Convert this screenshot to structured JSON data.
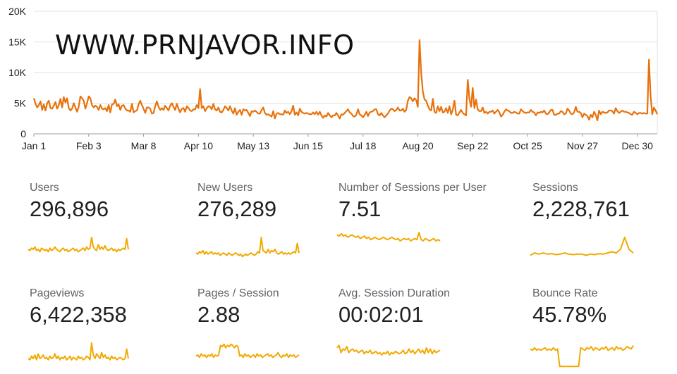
{
  "watermark": "WWW.PRNJAVOR.INFO",
  "colors": {
    "main_line": "#e8710a",
    "sparkline": "#f2a900",
    "grid": "#e0e0e0",
    "axis_text": "#212121"
  },
  "chart_data": {
    "type": "line",
    "series": [
      {
        "values": [
          5800,
          4900,
          4300,
          4700,
          5300,
          3900,
          4800,
          3800,
          5000,
          5400,
          4200,
          4100,
          4600,
          5200,
          4100,
          4700,
          5700,
          4300,
          6000,
          5100,
          5800,
          4200,
          3800,
          4100,
          5000,
          4300,
          3600,
          4400,
          6100,
          5800,
          5400,
          4100,
          5000,
          6100,
          5800,
          4700,
          4300,
          4600,
          4400,
          3900,
          4700,
          4100,
          4000,
          4200,
          3700,
          4700,
          3500,
          4800,
          4900,
          5600,
          4500,
          4800,
          3900,
          4600,
          4700,
          4100,
          3800,
          3800,
          3600,
          4900,
          3500,
          3700,
          3800,
          4800,
          5400,
          4700,
          4100,
          3400,
          4300,
          4300,
          4100,
          3300,
          3400,
          4500,
          5300,
          4400,
          3900,
          4200,
          3900,
          4600,
          4200,
          3800,
          4600,
          5000,
          4400,
          3900,
          4900,
          4100,
          3500,
          4100,
          4200,
          3600,
          4500,
          4200,
          3800,
          3700,
          4000,
          4000,
          4700,
          4200,
          7300,
          4200,
          4500,
          3700,
          4200,
          4500,
          4400,
          4000,
          4900,
          4000,
          3800,
          4300,
          3600,
          3500,
          3900,
          4500,
          4200,
          3800,
          4500,
          3800,
          3300,
          4200,
          3100,
          3600,
          3900,
          3100,
          4000,
          3800,
          3900,
          3400,
          2900,
          3700,
          3600,
          3800,
          3600,
          3300,
          3300,
          3900,
          4300,
          3400,
          3100,
          3200,
          3000,
          2800,
          3700,
          2500,
          3300,
          3400,
          3200,
          3200,
          3100,
          3800,
          3400,
          3600,
          3200,
          3700,
          4600,
          3100,
          3500,
          3000,
          4100,
          3600,
          3400,
          3300,
          3400,
          3300,
          3200,
          3200,
          3500,
          3200,
          3600,
          3100,
          3600,
          3000,
          2600,
          3000,
          2800,
          3400,
          3000,
          2700,
          3000,
          3000,
          3400,
          3000,
          2500,
          3200,
          3100,
          3400,
          3700,
          4000,
          3500,
          3300,
          2900,
          2800,
          3100,
          4000,
          3200,
          3000,
          2700,
          3100,
          3600,
          2900,
          3500,
          3600,
          3700,
          4000,
          4000,
          3200,
          3000,
          3400,
          3000,
          2700,
          3000,
          3300,
          3800,
          4100,
          4000,
          3700,
          3900,
          4300,
          3800,
          3800,
          4100,
          3600,
          3900,
          5400,
          6000,
          5800,
          5300,
          5800,
          5500,
          4400,
          15300,
          9900,
          6900,
          5600,
          5400,
          4600,
          4000,
          3800,
          5700,
          3600,
          3400,
          4500,
          3700,
          4400,
          3500,
          3600,
          4200,
          3400,
          4500,
          3200,
          3900,
          5400,
          3100,
          3000,
          3500,
          3900,
          3400,
          3200,
          3000,
          8800,
          5700,
          4400,
          7500,
          4200,
          5600,
          4000,
          3700,
          3700,
          4300,
          3400,
          3600,
          3300,
          3600,
          3600,
          3800,
          3300,
          3600,
          3900,
          3500,
          2800,
          3100,
          3600,
          4000,
          3800,
          3700,
          3400,
          3400,
          3600,
          3500,
          3300,
          3300,
          4000,
          3700,
          3500,
          3400,
          3500,
          3500,
          3900,
          3600,
          3500,
          3000,
          3500,
          3400,
          3600,
          3500,
          3800,
          3300,
          3200,
          3500,
          3900,
          3900,
          3100,
          3100,
          3300,
          3300,
          3700,
          3600,
          3200,
          3300,
          4100,
          3800,
          3300,
          3200,
          3500,
          4400,
          3600,
          3600,
          3400,
          2700,
          3300,
          3100,
          2900,
          2300,
          3100,
          2700,
          3600,
          3100,
          2200,
          3800,
          3200,
          3600,
          3500,
          3400,
          3500,
          3800,
          3800,
          3700,
          3300,
          4200,
          3700,
          3400,
          3600,
          3800,
          3600,
          3600,
          3500,
          3400,
          3200,
          3100,
          3600,
          3400,
          3200,
          3400,
          3400,
          3300,
          3400,
          3300,
          3300,
          12100,
          6100,
          3200,
          4300,
          3800,
          3200
        ]
      }
    ],
    "yticks": [
      0,
      5000,
      10000,
      15000,
      20000
    ],
    "ytick_labels": [
      "0",
      "5K",
      "10K",
      "15K",
      "20K"
    ],
    "xtick_labels": [
      "Jan 1",
      "Feb 3",
      "Mar 8",
      "Apr 10",
      "May 13",
      "Jun 15",
      "Jul 18",
      "Aug 20",
      "Sep 22",
      "Oct 25",
      "Nov 27",
      "Dec 30"
    ],
    "xtick_days": [
      0,
      33,
      66,
      99,
      132,
      165,
      198,
      231,
      264,
      297,
      330,
      363
    ],
    "ylim": [
      0,
      20000
    ],
    "grid": true
  },
  "metrics": [
    {
      "label": "Users",
      "value": "296,896",
      "spark": [
        0.5,
        0.45,
        0.55,
        0.5,
        0.6,
        0.45,
        0.5,
        0.4,
        0.55,
        0.5,
        0.45,
        0.5,
        0.4,
        0.55,
        0.45,
        0.5,
        0.6,
        0.5,
        0.45,
        0.4,
        0.5,
        0.55,
        0.45,
        0.5,
        0.4,
        0.45,
        0.5,
        0.55,
        0.45,
        0.5,
        0.4,
        0.45,
        0.5,
        0.55,
        0.45,
        0.6,
        0.5,
        0.55,
        1.0,
        0.6,
        0.5,
        0.45,
        0.7,
        0.5,
        0.6,
        0.5,
        0.65,
        0.5,
        0.45,
        0.5,
        0.55,
        0.45,
        0.5,
        0.4,
        0.5,
        0.45,
        0.5,
        0.55,
        0.5,
        0.95,
        0.5
      ]
    },
    {
      "label": "New Users",
      "value": "276,289",
      "spark": [
        0.35,
        0.3,
        0.4,
        0.35,
        0.45,
        0.3,
        0.4,
        0.3,
        0.35,
        0.4,
        0.3,
        0.35,
        0.3,
        0.35,
        0.25,
        0.3,
        0.35,
        0.3,
        0.25,
        0.35,
        0.3,
        0.25,
        0.3,
        0.35,
        0.3,
        0.25,
        0.3,
        0.2,
        0.25,
        0.3,
        0.25,
        0.3,
        0.35,
        0.3,
        0.25,
        0.3,
        0.4,
        0.35,
        1.0,
        0.45,
        0.4,
        0.35,
        0.5,
        0.35,
        0.45,
        0.4,
        0.5,
        0.35,
        0.3,
        0.35,
        0.4,
        0.3,
        0.35,
        0.3,
        0.35,
        0.3,
        0.35,
        0.4,
        0.35,
        0.75,
        0.35
      ]
    },
    {
      "label": "Number of Sessions per User",
      "value": "7.51",
      "spark": [
        0.75,
        0.7,
        0.8,
        0.7,
        0.75,
        0.65,
        0.7,
        0.75,
        0.7,
        0.65,
        0.7,
        0.6,
        0.65,
        0.7,
        0.6,
        0.65,
        0.55,
        0.6,
        0.65,
        0.6,
        0.55,
        0.6,
        0.65,
        0.6,
        0.55,
        0.6,
        0.65,
        0.6,
        0.55,
        0.6,
        0.5,
        0.55,
        0.6,
        0.55,
        0.6,
        0.5,
        0.55,
        0.6,
        0.55,
        0.85,
        0.55,
        0.5,
        0.6,
        0.55,
        0.5,
        0.55,
        0.6,
        0.5,
        0.55,
        0.5
      ]
    },
    {
      "label": "Sessions",
      "value": "2,228,761",
      "spark": [
        0.25,
        0.35,
        0.3,
        0.35,
        0.3,
        0.32,
        0.28,
        0.3,
        0.35,
        0.3,
        0.28,
        0.3,
        0.3,
        0.25,
        0.3,
        0.28,
        0.32,
        0.3,
        0.35,
        0.4,
        0.35,
        0.5,
        1.0,
        0.5,
        0.35
      ]
    },
    {
      "label": "Pageviews",
      "value": "6,422,358",
      "spark": [
        0.35,
        0.3,
        0.45,
        0.35,
        0.5,
        0.3,
        0.55,
        0.35,
        0.4,
        0.5,
        0.35,
        0.4,
        0.3,
        0.45,
        0.35,
        0.4,
        0.55,
        0.35,
        0.45,
        0.3,
        0.4,
        0.35,
        0.45,
        0.3,
        0.35,
        0.45,
        0.3,
        0.4,
        0.35,
        0.3,
        0.45,
        0.35,
        0.4,
        0.3,
        0.35,
        0.45,
        0.4,
        0.3,
        1.0,
        0.5,
        0.35,
        0.55,
        0.45,
        0.35,
        0.6,
        0.4,
        0.5,
        0.35,
        0.4,
        0.3,
        0.45,
        0.35,
        0.4,
        0.3,
        0.35,
        0.4,
        0.35,
        0.3,
        0.35,
        0.75,
        0.35
      ]
    },
    {
      "label": "Pages / Session",
      "value": "2.88",
      "spark": [
        0.45,
        0.5,
        0.4,
        0.55,
        0.45,
        0.5,
        0.4,
        0.5,
        0.45,
        0.55,
        0.4,
        0.5,
        0.45,
        0.5,
        0.9,
        0.85,
        0.95,
        0.8,
        0.9,
        0.85,
        0.95,
        0.9,
        0.8,
        0.9,
        0.85,
        0.45,
        0.5,
        0.4,
        0.55,
        0.45,
        0.5,
        0.4,
        0.45,
        0.5,
        0.4,
        0.55,
        0.45,
        0.5,
        0.4,
        0.45,
        0.5,
        0.55,
        0.45,
        0.5,
        0.4,
        0.45,
        0.5,
        0.6,
        0.45,
        0.4,
        0.5,
        0.45,
        0.55,
        0.4,
        0.5,
        0.45,
        0.5,
        0.4,
        0.45,
        0.5
      ]
    },
    {
      "label": "Avg. Session Duration",
      "value": "00:02:01",
      "spark": [
        0.8,
        0.9,
        0.6,
        0.75,
        0.7,
        0.85,
        0.6,
        0.7,
        0.75,
        0.65,
        0.7,
        0.6,
        0.65,
        0.7,
        0.55,
        0.65,
        0.6,
        0.7,
        0.55,
        0.6,
        0.65,
        0.55,
        0.6,
        0.5,
        0.6,
        0.55,
        0.65,
        0.5,
        0.6,
        0.55,
        0.65,
        0.6,
        0.55,
        0.6,
        0.7,
        0.55,
        0.6,
        0.75,
        0.6,
        0.7,
        0.55,
        0.65,
        0.75,
        0.6,
        0.7,
        0.55,
        0.8,
        0.6,
        0.75,
        0.55,
        0.7,
        0.6,
        0.65,
        0.7
      ]
    },
    {
      "label": "Bounce Rate",
      "value": "45.78%",
      "spark": [
        0.75,
        0.7,
        0.8,
        0.7,
        0.75,
        0.7,
        0.75,
        0.8,
        0.7,
        0.75,
        0.7,
        0.8,
        0.7,
        0.75,
        0.02,
        0.02,
        0.02,
        0.02,
        0.02,
        0.02,
        0.02,
        0.02,
        0.02,
        0.02,
        0.8,
        0.75,
        0.7,
        0.8,
        0.75,
        0.85,
        0.7,
        0.8,
        0.75,
        0.7,
        0.8,
        0.75,
        0.85,
        0.7,
        0.75,
        0.8,
        0.7,
        0.85,
        0.75,
        0.8,
        0.7,
        0.75,
        0.85,
        0.8,
        0.75,
        0.9
      ]
    }
  ]
}
